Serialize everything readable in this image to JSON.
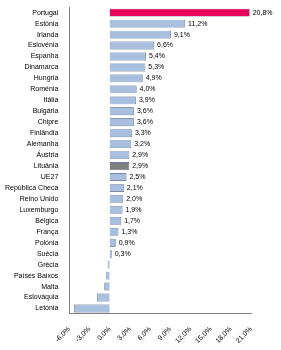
{
  "chart_data": {
    "type": "bar",
    "orientation": "horizontal",
    "categories": [
      "Portugal",
      "Estónia",
      "Irlanda",
      "Eslovénia",
      "Espanha",
      "Dinamarca",
      "Hungria",
      "Roménia",
      "Itália",
      "Bulgária",
      "Chipre",
      "Finlândia",
      "Alemanha",
      "Áustria",
      "Lituânia",
      "UE27",
      "República Checa",
      "Reino Unido",
      "Luxemburgo",
      "Bélgica",
      "França",
      "Polónia",
      "Suécia",
      "Grécia",
      "Países Baixos",
      "Malta",
      "Eslováquia",
      "Letónia"
    ],
    "values": [
      20.8,
      11.2,
      9.1,
      6.6,
      5.4,
      5.3,
      4.9,
      4.0,
      3.9,
      3.6,
      3.6,
      3.3,
      3.2,
      2.9,
      2.9,
      2.5,
      2.1,
      2.0,
      1.9,
      1.7,
      1.3,
      0.9,
      0.3,
      -0.3,
      -0.5,
      -0.8,
      -1.9,
      -5.3
    ],
    "value_labels": [
      "20,8%",
      "11,2%",
      "9,1%",
      "6,6%",
      "5,4%",
      "5,3%",
      "4,9%",
      "4,0%",
      "3,9%",
      "3,6%",
      "3,6%",
      "3,3%",
      "3,2%",
      "2,9%",
      "2,9%",
      "2,5%",
      "2,1%",
      "2,0%",
      "1,9%",
      "1,7%",
      "1,3%",
      "0,9%",
      "0,3%",
      null,
      null,
      null,
      null,
      null
    ],
    "data_labels": true,
    "colors": [
      "#e8005a",
      "#a8bfe0",
      "#a8bfe0",
      "#a8bfe0",
      "#a8bfe0",
      "#a8bfe0",
      "#a8bfe0",
      "#a8bfe0",
      "#a8bfe0",
      "#a8bfe0",
      "#a8bfe0",
      "#a8bfe0",
      "#a8bfe0",
      "#a8bfe0",
      "#7f7f7f",
      "#a8bfe0",
      "#a8bfe0",
      "#a8bfe0",
      "#a8bfe0",
      "#a8bfe0",
      "#a8bfe0",
      "#a8bfe0",
      "#a8bfe0",
      "#a8bfe0",
      "#a8bfe0",
      "#a8bfe0",
      "#a8bfe0",
      "#a8bfe0"
    ],
    "xlim": [
      -6,
      21
    ],
    "xticks": [
      {
        "value": -6,
        "label": "-6,0%"
      },
      {
        "value": -3,
        "label": "-3,0%"
      },
      {
        "value": 0,
        "label": "0,0%"
      },
      {
        "value": 3,
        "label": "3,0%"
      },
      {
        "value": 6,
        "label": "6,0%"
      },
      {
        "value": 9,
        "label": "9,0%"
      },
      {
        "value": 12,
        "label": "12,0%"
      },
      {
        "value": 15,
        "label": "15,0%"
      },
      {
        "value": 18,
        "label": "18,0%"
      },
      {
        "value": 21,
        "label": "21,0%"
      }
    ],
    "grid": false
  }
}
